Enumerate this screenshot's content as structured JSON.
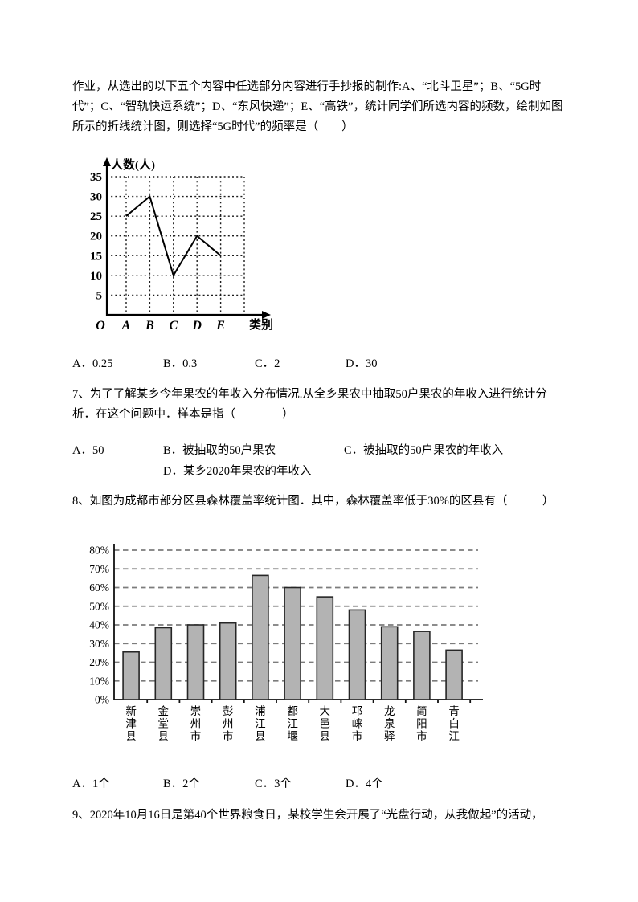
{
  "page": {
    "background": "#ffffff",
    "text_color": "#000000"
  },
  "question6": {
    "lines": [
      "作业，从选出的以下五个内容中任选部分内容进行手抄报的制作:A、“北斗卫星”；B、“5G时",
      "代”；C、“智轨快运系统”；D、“东风快递”；E、“高铁”，统计同学们所选内容的频数，绘制如图",
      "所示的折线统计图，则选择“5G时代”的频率是（　　）"
    ],
    "options": [
      "A．0.25",
      "B．0.3",
      "C．2",
      "D．30"
    ]
  },
  "question7": {
    "lines": [
      "7、为了了解某乡今年果农的年收入分布情况.从全乡果农中抽取50户果农的年收入进行统计分",
      "析．在这个问题中．样本是指（　　　　）"
    ],
    "options": [
      "A．50",
      "B．被抽取的50户果农",
      "C．被抽取的50户果农的年收入",
      "D．某乡2020年果农的年收入"
    ]
  },
  "question8": {
    "lines": [
      "8、如图为成都市部分区县森林覆盖率统计图．其中，森林覆盖率低于30%的区县有（　　　）"
    ],
    "options": [
      "A．1个",
      "B．2个",
      "C．3个",
      "D．4个"
    ]
  },
  "question9": {
    "lines": [
      "9、2020年10月16日是第40个世界粮食日，某校学生会开展了“光盘行动，从我做起”的活动，"
    ]
  },
  "chart_data": [
    {
      "type": "line",
      "title": "",
      "ylabel": "人数(人)",
      "xlabel": "类别",
      "origin_label": "O",
      "categories": [
        "A",
        "B",
        "C",
        "D",
        "E"
      ],
      "values": [
        25,
        30,
        10,
        20,
        15
      ],
      "yticks": [
        5,
        10,
        15,
        20,
        25,
        30,
        35
      ],
      "ylim": [
        0,
        37
      ],
      "grid": "dotted",
      "line_color": "#000000"
    },
    {
      "type": "bar",
      "title": "",
      "xlabel": "",
      "ylabel": "",
      "categories": [
        "新津县",
        "金堂县",
        "崇州市",
        "彭州市",
        "浦江县",
        "都江堰",
        "大邑县",
        "邛崃市",
        "龙泉驿",
        "简阳市",
        "青白江"
      ],
      "values": [
        25.5,
        38.5,
        40,
        41,
        66.5,
        60,
        55,
        48,
        39,
        36.5,
        26.5
      ],
      "yticks": [
        0,
        10,
        20,
        30,
        40,
        50,
        60,
        70,
        80
      ],
      "ytick_suffix": "%",
      "ylim": [
        0,
        85
      ],
      "grid": "dashed",
      "grid_color": "#7c7c7c",
      "bar_fill": "#b3b3b3",
      "bar_border": "#262626"
    }
  ]
}
